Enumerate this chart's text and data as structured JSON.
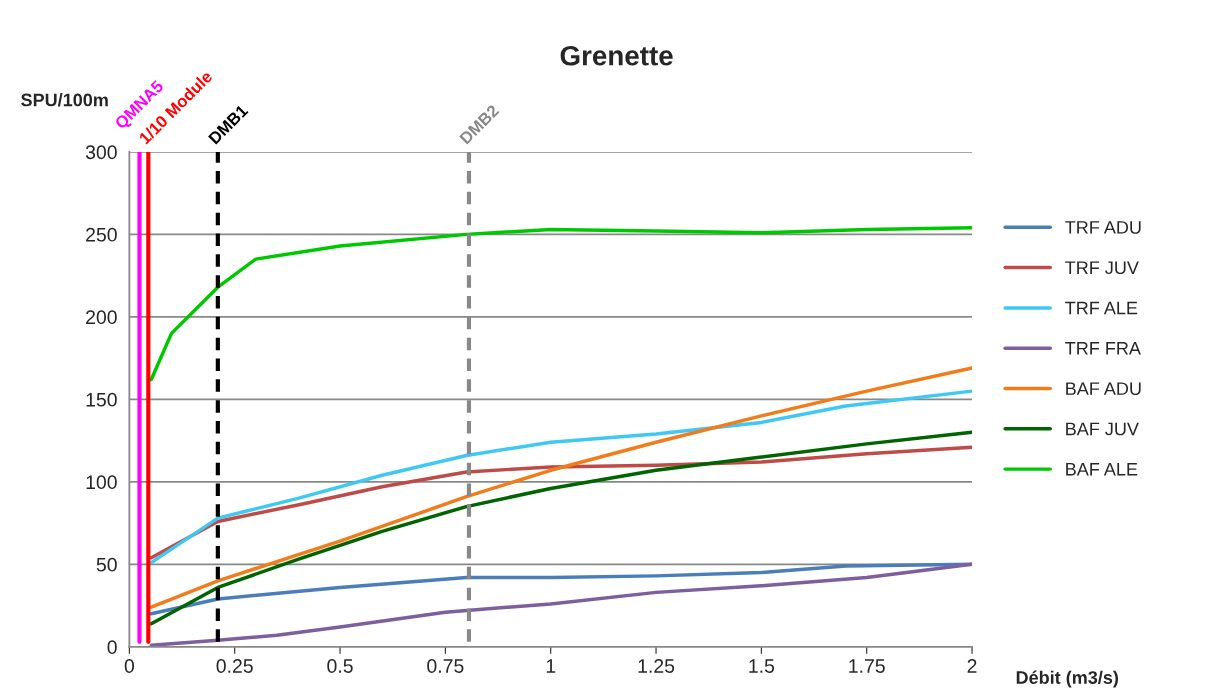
{
  "chart_data": {
    "type": "line",
    "title": "Grenette",
    "xlabel": "Débit (m3/s)",
    "ylabel": "SPU/100m",
    "xlim": [
      0,
      2
    ],
    "xticks": [
      0,
      0.25,
      0.5,
      0.75,
      1,
      1.25,
      1.5,
      1.75,
      2
    ],
    "ylim": [
      0,
      300
    ],
    "yticks": [
      0,
      50,
      100,
      150,
      200,
      250,
      300
    ],
    "grid": "y",
    "legend": "right",
    "marker": "none",
    "line_style": "solid",
    "series": [
      {
        "name": "TRF ADU",
        "color": "#4a7ebb",
        "x": [
          0.052,
          0.21,
          0.5,
          0.8,
          1.0,
          1.25,
          1.5,
          1.7,
          2.0
        ],
        "values": [
          20,
          29,
          36,
          42,
          42,
          43,
          45,
          49,
          50
        ]
      },
      {
        "name": "TRF JUV",
        "color": "#be4b48",
        "x": [
          0.052,
          0.21,
          0.4,
          0.6,
          0.8,
          1.0,
          1.25,
          1.5,
          1.75,
          2.0
        ],
        "values": [
          54,
          76,
          86,
          97,
          106,
          109,
          110,
          112,
          117,
          121
        ]
      },
      {
        "name": "TRF ALE",
        "color": "#40c8f4",
        "x": [
          0.052,
          0.21,
          0.4,
          0.6,
          0.8,
          1.0,
          1.25,
          1.5,
          1.7,
          2.0
        ],
        "values": [
          51,
          78,
          90,
          104,
          116,
          124,
          129,
          136,
          146,
          155
        ]
      },
      {
        "name": "TRF FRA",
        "color": "#7d5fa0",
        "x": [
          0.052,
          0.21,
          0.35,
          0.5,
          0.75,
          1.0,
          1.25,
          1.5,
          1.75,
          2.0
        ],
        "values": [
          1,
          4,
          7,
          12,
          21,
          26,
          33,
          37,
          42,
          50
        ]
      },
      {
        "name": "BAF ADU",
        "color": "#f07c1c",
        "x": [
          0.052,
          0.21,
          0.5,
          0.8,
          1.0,
          1.25,
          1.5,
          1.75,
          2.0
        ],
        "values": [
          24,
          40,
          64,
          91,
          107,
          124,
          140,
          155,
          169
        ]
      },
      {
        "name": "BAF JUV",
        "color": "#006400",
        "x": [
          0.052,
          0.21,
          0.4,
          0.6,
          0.8,
          1.0,
          1.25,
          1.5,
          1.75,
          2.0
        ],
        "values": [
          14,
          36,
          53,
          70,
          85,
          96,
          107,
          115,
          123,
          130
        ]
      },
      {
        "name": "BAF ALE",
        "color": "#00c800",
        "x": [
          0.052,
          0.1,
          0.21,
          0.3,
          0.5,
          0.8,
          1.0,
          1.25,
          1.5,
          1.75,
          2.0
        ],
        "values": [
          162,
          190,
          218,
          235,
          243,
          250,
          253,
          252,
          251,
          253,
          254
        ]
      }
    ],
    "ref_lines": [
      {
        "axis": "x",
        "value": 0.024,
        "label": "QMNA5",
        "color": "#ff00ff",
        "line_style": "solid"
      },
      {
        "axis": "x",
        "value": 0.045,
        "label": "1/10 Module",
        "color": "#ff0000",
        "line_style": "solid"
      },
      {
        "axis": "x",
        "value": 0.21,
        "label": "DMB1",
        "color": "#000000",
        "line_style": "dashed"
      },
      {
        "axis": "x",
        "value": 0.806,
        "label": "DMB2",
        "color": "#888888",
        "line_style": "dashed"
      }
    ]
  }
}
